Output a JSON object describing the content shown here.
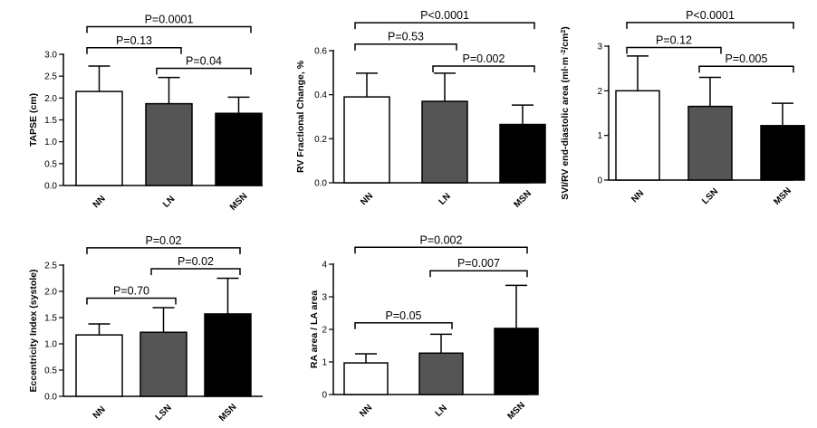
{
  "chart_data": [
    {
      "id": "tapse",
      "type": "bar",
      "ylabel": "TAPSE (cm)",
      "ylabel_parts": [
        {
          "text": "TAPSE (cm)",
          "sup": false
        }
      ],
      "categories": [
        "NN",
        "LN",
        "MSN"
      ],
      "values": [
        2.15,
        1.87,
        1.65
      ],
      "errors": [
        0.58,
        0.6,
        0.37
      ],
      "colors": [
        "#ffffff",
        "#555555",
        "#000000"
      ],
      "ylim": [
        0,
        3.0
      ],
      "yticks": [
        "0.0",
        "0.5",
        "1.0",
        "1.5",
        "2.0",
        "2.5",
        "3.0"
      ],
      "tick_values": [
        0,
        0.5,
        1.0,
        1.5,
        2.0,
        2.5,
        3.0
      ],
      "comparisons": [
        {
          "from": 0,
          "to": 2,
          "label": "P=0.0001",
          "y": 3.63
        },
        {
          "from": 0,
          "to": 1,
          "label": "P=0.13",
          "y": 3.15
        },
        {
          "from": 1,
          "to": 2,
          "label": "P=0.04",
          "y": 2.68
        }
      ]
    },
    {
      "id": "rv-fc",
      "type": "bar",
      "ylabel": "RV Fractional Change, %",
      "ylabel_parts": [
        {
          "text": "RV Fractional Change, %",
          "sup": false
        }
      ],
      "categories": [
        "NN",
        "LN",
        "MSN"
      ],
      "values": [
        0.39,
        0.37,
        0.265
      ],
      "errors": [
        0.108,
        0.128,
        0.088
      ],
      "colors": [
        "#ffffff",
        "#555555",
        "#000000"
      ],
      "ylim": [
        0,
        0.6
      ],
      "yticks": [
        "0.0",
        "0.2",
        "0.4",
        "0.6"
      ],
      "tick_values": [
        0,
        0.2,
        0.4,
        0.6
      ],
      "comparisons": [
        {
          "from": 0,
          "to": 2,
          "label": "P<0.0001",
          "y": 0.727
        },
        {
          "from": 0,
          "to": 1,
          "label": "P=0.53",
          "y": 0.63
        },
        {
          "from": 1,
          "to": 2,
          "label": "P=0.002",
          "y": 0.53
        }
      ]
    },
    {
      "id": "svi-rv",
      "type": "bar",
      "ylabel": "SVI/RV end-diastolic area (ml·m-2/cm2)",
      "ylabel_parts": [
        {
          "text": "SVI/RV end-diastolic area (ml·m",
          "sup": false
        },
        {
          "text": " -2",
          "sup": true
        },
        {
          "text": "/cm",
          "sup": false
        },
        {
          "text": "2",
          "sup": true
        },
        {
          "text": ")",
          "sup": false
        }
      ],
      "categories": [
        "NN",
        "LSN",
        "MSN"
      ],
      "values": [
        2.0,
        1.65,
        1.22
      ],
      "errors": [
        0.78,
        0.65,
        0.5
      ],
      "colors": [
        "#ffffff",
        "#555555",
        "#000000"
      ],
      "ylim": [
        0,
        3
      ],
      "yticks": [
        "0",
        "1",
        "2",
        "3"
      ],
      "tick_values": [
        0,
        1,
        2,
        3
      ],
      "comparisons": [
        {
          "from": 0,
          "to": 2,
          "label": "P<0.0001",
          "y": 3.53
        },
        {
          "from": 0,
          "to": 1,
          "label": "P=0.12",
          "y": 2.97
        },
        {
          "from": 1,
          "to": 2,
          "label": "P=0.005",
          "y": 2.55
        }
      ]
    },
    {
      "id": "eccentricity",
      "type": "bar",
      "ylabel": "Eccentricity Index (systole)",
      "ylabel_parts": [
        {
          "text": "Eccentricity Index (systole)",
          "sup": false
        }
      ],
      "categories": [
        "NN",
        "LSN",
        "MSN"
      ],
      "values": [
        1.17,
        1.22,
        1.57
      ],
      "errors": [
        0.21,
        0.47,
        0.68
      ],
      "colors": [
        "#ffffff",
        "#555555",
        "#000000"
      ],
      "ylim": [
        0,
        2.5
      ],
      "yticks": [
        "0.0",
        "0.5",
        "1.0",
        "1.5",
        "2.0",
        "2.5"
      ],
      "tick_values": [
        0,
        0.5,
        1.0,
        1.5,
        2.0,
        2.5
      ],
      "comparisons": [
        {
          "from": 0,
          "to": 2,
          "label": "P=0.02",
          "y": 2.83
        },
        {
          "from": 1,
          "to": 2,
          "label": "P=0.02",
          "y": 2.43
        },
        {
          "from": 0,
          "to": 1,
          "label": "P=0.70",
          "y": 1.87
        }
      ]
    },
    {
      "id": "ra-la",
      "type": "bar",
      "ylabel": "RA area / LA area",
      "ylabel_parts": [
        {
          "text": "RA area / LA area",
          "sup": false
        }
      ],
      "categories": [
        "NN",
        "LN",
        "MSN"
      ],
      "values": [
        0.97,
        1.27,
        2.03
      ],
      "errors": [
        0.28,
        0.58,
        1.32
      ],
      "colors": [
        "#ffffff",
        "#555555",
        "#000000"
      ],
      "ylim": [
        0,
        4
      ],
      "yticks": [
        "0",
        "1",
        "2",
        "3",
        "4"
      ],
      "tick_values": [
        0,
        1,
        2,
        3,
        4
      ],
      "comparisons": [
        {
          "from": 0,
          "to": 2,
          "label": "P=0.002",
          "y": 4.52
        },
        {
          "from": 1,
          "to": 2,
          "label": "P=0.007",
          "y": 3.8
        },
        {
          "from": 0,
          "to": 1,
          "label": "P=0.05",
          "y": 2.2
        }
      ]
    }
  ]
}
